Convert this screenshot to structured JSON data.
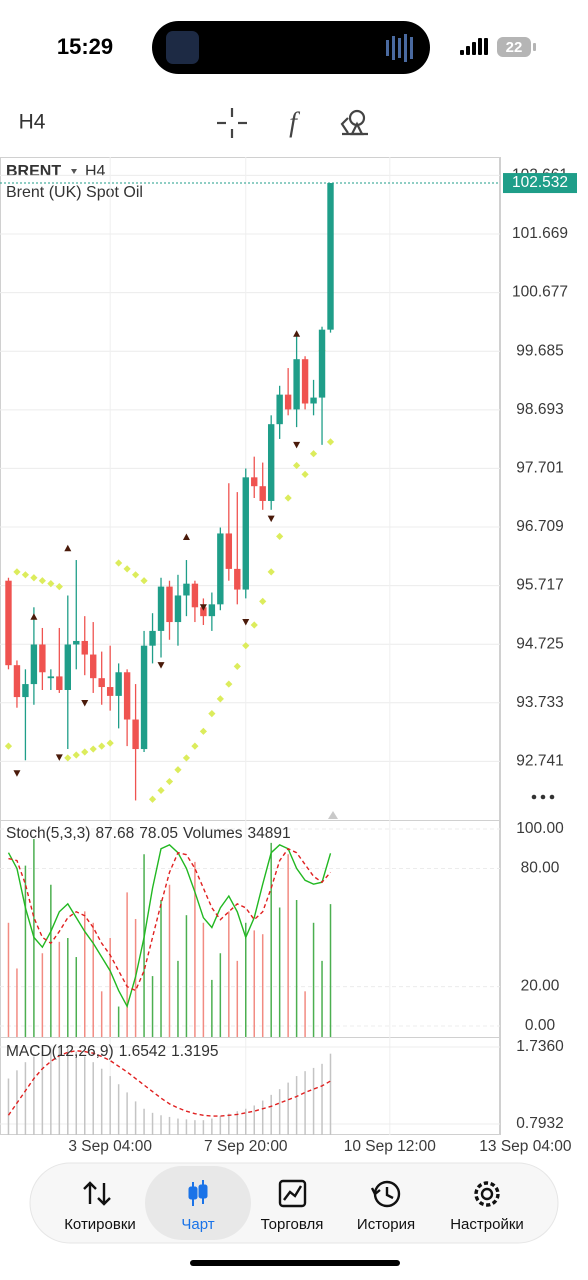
{
  "status_bar": {
    "time": "15:29",
    "battery": "22"
  },
  "toolbar": {
    "timeframe": "H4"
  },
  "chart_data": [
    {
      "type": "candlestick",
      "symbol": "BRENT",
      "timeframe": "H4",
      "description": "Brent (UK) Spot Oil",
      "up_color": "#1f9e89",
      "down_color": "#ef5350",
      "open": [
        95.8,
        94.37,
        93.83,
        94.05,
        94.72,
        94.15,
        94.18,
        93.95,
        94.72,
        94.78,
        94.55,
        94.15,
        94.0,
        93.85,
        94.25,
        93.45,
        92.95,
        94.7,
        94.95,
        95.7,
        95.1,
        95.55,
        95.75,
        95.35,
        95.2,
        95.4,
        96.6,
        96.0,
        95.65,
        97.55,
        97.4,
        97.15,
        98.45,
        98.95,
        98.7,
        99.55,
        98.8,
        98.9,
        100.05
      ],
      "high": [
        95.85,
        94.45,
        94.3,
        95.35,
        95.0,
        94.3,
        95.0,
        95.55,
        96.15,
        95.2,
        95.1,
        94.6,
        94.7,
        94.4,
        94.3,
        94.05,
        94.95,
        95.25,
        95.85,
        95.8,
        95.9,
        96.15,
        95.8,
        95.5,
        95.6,
        96.7,
        97.45,
        97.3,
        97.7,
        97.9,
        97.8,
        98.6,
        99.1,
        99.4,
        99.95,
        99.6,
        99.2,
        100.1,
        102.532
      ],
      "low": [
        94.3,
        93.65,
        92.76,
        93.7,
        93.95,
        93.95,
        93.9,
        92.95,
        94.3,
        94.2,
        93.9,
        93.7,
        93.6,
        93.3,
        93.0,
        92.08,
        92.9,
        94.4,
        94.5,
        94.8,
        94.7,
        95.2,
        95.1,
        95.05,
        94.95,
        95.3,
        95.8,
        95.4,
        95.5,
        97.2,
        97.0,
        97.0,
        98.2,
        98.6,
        98.4,
        98.7,
        98.6,
        98.1,
        100.0
      ],
      "close": [
        94.37,
        93.83,
        94.05,
        94.72,
        94.25,
        94.18,
        93.95,
        94.72,
        94.78,
        94.55,
        94.15,
        94.0,
        93.85,
        94.25,
        93.45,
        92.95,
        94.7,
        94.95,
        95.7,
        95.1,
        95.55,
        95.75,
        95.35,
        95.2,
        95.4,
        96.6,
        96.0,
        95.65,
        97.55,
        97.4,
        97.15,
        98.45,
        98.95,
        98.7,
        99.55,
        98.8,
        98.9,
        100.05,
        102.532
      ],
      "sar": {
        "color": "#dcec5c",
        "values": [
          93.0,
          95.95,
          95.9,
          95.85,
          95.8,
          95.75,
          95.7,
          92.8,
          92.85,
          92.9,
          92.95,
          93.0,
          93.05,
          96.1,
          96.0,
          95.9,
          95.8,
          92.1,
          92.25,
          92.4,
          92.6,
          92.8,
          93.0,
          93.25,
          93.55,
          93.8,
          94.05,
          94.35,
          94.7,
          95.05,
          95.45,
          95.95,
          96.55,
          97.2,
          97.75,
          97.6,
          97.95,
          99.7,
          98.15
        ]
      },
      "fractals_color": "#4a1a0a",
      "fractals_up": [
        null,
        null,
        null,
        95.19,
        null,
        null,
        null,
        96.35,
        null,
        null,
        null,
        null,
        null,
        null,
        null,
        null,
        null,
        null,
        null,
        null,
        null,
        96.54,
        null,
        null,
        null,
        null,
        null,
        null,
        null,
        null,
        null,
        null,
        null,
        null,
        99.98,
        null,
        null,
        null,
        null
      ],
      "fractals_down": [
        null,
        92.54,
        null,
        null,
        null,
        null,
        92.81,
        null,
        null,
        93.73,
        null,
        null,
        null,
        null,
        null,
        null,
        null,
        null,
        94.37,
        null,
        null,
        null,
        null,
        95.35,
        null,
        null,
        null,
        null,
        95.1,
        null,
        null,
        96.85,
        null,
        null,
        98.1,
        null,
        null,
        null,
        null
      ],
      "last_price": 102.532,
      "price_line_color": "#1f9e89",
      "xlim": [
        -1,
        58
      ],
      "xticks": [
        {
          "value": 12,
          "label": "3 Sep 04:00"
        },
        {
          "value": 28,
          "label": "7 Sep 20:00"
        },
        {
          "value": 45,
          "label": "10 Sep 12:00"
        },
        {
          "value": 61,
          "label": "13 Sep 04:00"
        }
      ],
      "ylim": [
        91.749,
        102.973
      ],
      "yticks": [
        102.661,
        101.669,
        100.677,
        99.685,
        98.693,
        97.701,
        96.709,
        95.717,
        94.725,
        93.733,
        92.741
      ],
      "grid": true
    },
    {
      "type": "stochastic",
      "title": "Stoch(5,3,3)",
      "series": [
        {
          "name": "main",
          "color": "#22b822",
          "dashed": false,
          "values": [
            88,
            80,
            60,
            45,
            40,
            48,
            58,
            62,
            55,
            48,
            42,
            35,
            28,
            18,
            10,
            25,
            45,
            70,
            90,
            92,
            88,
            80,
            68,
            55,
            50,
            60,
            66,
            58,
            45,
            55,
            72,
            88,
            92,
            90,
            80,
            74,
            72,
            73,
            87.68
          ]
        },
        {
          "name": "signal",
          "color": "#e02020",
          "dashed": true,
          "values": [
            85,
            84,
            72,
            55,
            45,
            42,
            48,
            55,
            58,
            56,
            50,
            42,
            36,
            28,
            20,
            18,
            28,
            45,
            62,
            78,
            88,
            87,
            80,
            70,
            60,
            54,
            58,
            62,
            60,
            54,
            58,
            70,
            84,
            90,
            88,
            82,
            76,
            73,
            78.05
          ]
        }
      ],
      "volumes": {
        "name": "Volumes",
        "up_color": "#4caf50",
        "down_color": "#f28b82",
        "y2lim": [
          0,
          57000
        ],
        "values": [
          30000,
          18000,
          45000,
          52000,
          22000,
          40000,
          25000,
          26000,
          21000,
          33000,
          30000,
          12000,
          26000,
          8000,
          38000,
          31000,
          48000,
          16000,
          36000,
          40000,
          20000,
          32000,
          46000,
          30000,
          15000,
          22000,
          33000,
          20000,
          30000,
          28000,
          27000,
          51000,
          34000,
          48000,
          36000,
          12000,
          30000,
          20000,
          34891
        ]
      },
      "ylim": [
        -5.6,
        104.6
      ],
      "yticks": [
        {
          "value": 100,
          "label": "100.00"
        },
        {
          "value": 80,
          "label": "80.00"
        },
        {
          "value": 20,
          "label": "20.00"
        },
        {
          "value": 0,
          "label": "0.00"
        }
      ]
    },
    {
      "type": "macd",
      "title": "MACD(12,26,9)",
      "series": [
        {
          "name": "histogram",
          "color": "#c4c4c4",
          "values": [
            1.35,
            1.45,
            1.55,
            1.62,
            1.68,
            1.72,
            1.736,
            1.72,
            1.68,
            1.62,
            1.55,
            1.47,
            1.38,
            1.28,
            1.18,
            1.07,
            0.98,
            0.93,
            0.9,
            0.88,
            0.86,
            0.85,
            0.84,
            0.84,
            0.86,
            0.89,
            0.92,
            0.95,
            0.98,
            1.02,
            1.08,
            1.15,
            1.22,
            1.3,
            1.38,
            1.44,
            1.48,
            1.53,
            1.6542
          ]
        },
        {
          "name": "signal",
          "color": "#e02020",
          "dashed": true,
          "values": [
            0.9,
            1.05,
            1.2,
            1.35,
            1.47,
            1.56,
            1.63,
            1.67,
            1.69,
            1.68,
            1.66,
            1.62,
            1.57,
            1.5,
            1.43,
            1.35,
            1.27,
            1.19,
            1.11,
            1.04,
            0.99,
            0.95,
            0.92,
            0.9,
            0.89,
            0.89,
            0.9,
            0.91,
            0.93,
            0.95,
            0.98,
            1.01,
            1.05,
            1.09,
            1.13,
            1.18,
            1.22,
            1.26,
            1.3195
          ]
        }
      ],
      "ylim": [
        0.6585,
        1.8584
      ],
      "yticks": [
        {
          "value": 1.736,
          "label": "1.7360"
        },
        {
          "value": 0.7932,
          "label": "0.7932"
        }
      ]
    }
  ],
  "tab_bar": {
    "active": 1,
    "tabs": [
      "Котировки",
      "Чарт",
      "Торговля",
      "История",
      "Настройки"
    ]
  }
}
